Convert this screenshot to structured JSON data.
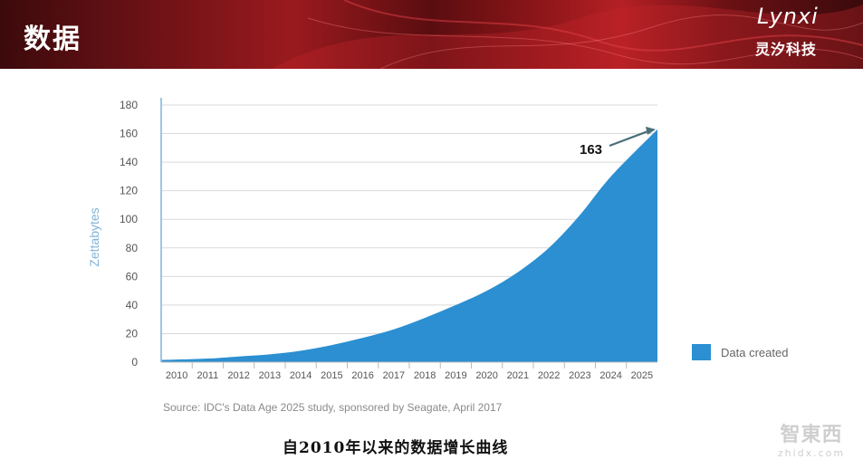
{
  "header": {
    "title": "数据",
    "brand_logo": "Lynxi",
    "brand_sub": "灵汐科技"
  },
  "colors": {
    "header_red": "#8f1619",
    "area_fill": "#2b8fd1",
    "axis_label": "#7fb4d8"
  },
  "chart_data": {
    "type": "area",
    "ylabel": "Zettabytes",
    "ylim": [
      0,
      180
    ],
    "yticks": [
      "0",
      "20",
      "40",
      "60",
      "80",
      "100",
      "120",
      "140",
      "160",
      "180"
    ],
    "x": [
      "2010",
      "2011",
      "2012",
      "2013",
      "2014",
      "2015",
      "2016",
      "2017",
      "2018",
      "2019",
      "2020",
      "2021",
      "2022",
      "2023",
      "2024",
      "2025"
    ],
    "series": [
      {
        "name": "Data created",
        "values": [
          1.5,
          2.5,
          4,
          5.5,
          8,
          12,
          17,
          23,
          31,
          40,
          50,
          63,
          80,
          103,
          130,
          163
        ]
      }
    ],
    "annotation": {
      "label": "163",
      "year": "2025",
      "value": 163
    },
    "legend_position": "bottom-right",
    "grid": true
  },
  "source_text": "Source: IDC's Data Age 2025 study, sponsored by Seagate, April 2017",
  "caption": "自2010年以来的数据增长曲线",
  "watermark": {
    "main": "智東西",
    "sub": "zhidx.com"
  }
}
